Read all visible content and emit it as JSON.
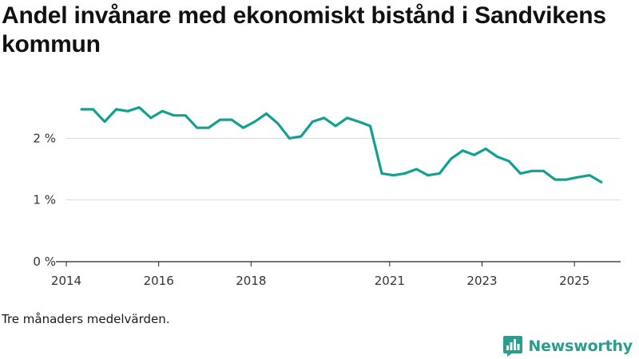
{
  "title": "Andel invånare med ekonomiskt bistånd i Sandvikens kommun",
  "note": "Tre månaders medelvärden.",
  "brand": {
    "name": "Newsworthy",
    "icon": "bar-chart-bubble-icon",
    "color": "#2a9d8f"
  },
  "colors": {
    "line": "#14a090",
    "grid": "#d9d9d9",
    "axis": "#222222"
  },
  "chart_data": {
    "type": "line",
    "title": "Andel invånare med ekonomiskt bistånd i Sandvikens kommun",
    "xlabel": "",
    "ylabel": "",
    "xlim": [
      2014.0,
      2026.0
    ],
    "ylim": [
      0,
      3.0
    ],
    "y_ticks": [
      {
        "value": 0,
        "label": "0 %"
      },
      {
        "value": 1,
        "label": "1 %"
      },
      {
        "value": 2,
        "label": "2 %"
      }
    ],
    "x_ticks": [
      {
        "value": 2014,
        "label": "2014"
      },
      {
        "value": 2016,
        "label": "2016"
      },
      {
        "value": 2018,
        "label": "2018"
      },
      {
        "value": 2021,
        "label": "2021"
      },
      {
        "value": 2023,
        "label": "2023"
      },
      {
        "value": 2025,
        "label": "2025"
      }
    ],
    "series": [
      {
        "name": "Andel invånare med ekonomiskt bistånd",
        "x": [
          2014.33,
          2014.58,
          2014.83,
          2015.08,
          2015.33,
          2015.58,
          2015.83,
          2016.08,
          2016.33,
          2016.58,
          2016.83,
          2017.08,
          2017.33,
          2017.58,
          2017.83,
          2018.08,
          2018.33,
          2018.58,
          2018.83,
          2019.08,
          2019.33,
          2019.58,
          2019.83,
          2020.08,
          2020.33,
          2020.58,
          2020.83,
          2021.08,
          2021.33,
          2021.58,
          2021.83,
          2022.08,
          2022.33,
          2022.58,
          2022.83,
          2023.08,
          2023.33,
          2023.58,
          2023.83,
          2024.08,
          2024.33,
          2024.58,
          2024.83,
          2025.08,
          2025.33,
          2025.58
        ],
        "values": [
          2.47,
          2.47,
          2.27,
          2.47,
          2.44,
          2.5,
          2.33,
          2.44,
          2.37,
          2.37,
          2.17,
          2.17,
          2.3,
          2.3,
          2.17,
          2.27,
          2.4,
          2.24,
          2.0,
          2.03,
          2.27,
          2.33,
          2.2,
          2.33,
          2.27,
          2.2,
          1.43,
          1.4,
          1.43,
          1.5,
          1.4,
          1.43,
          1.67,
          1.8,
          1.73,
          1.83,
          1.7,
          1.63,
          1.43,
          1.47,
          1.47,
          1.33,
          1.33,
          1.37,
          1.4,
          1.29
        ]
      }
    ]
  }
}
